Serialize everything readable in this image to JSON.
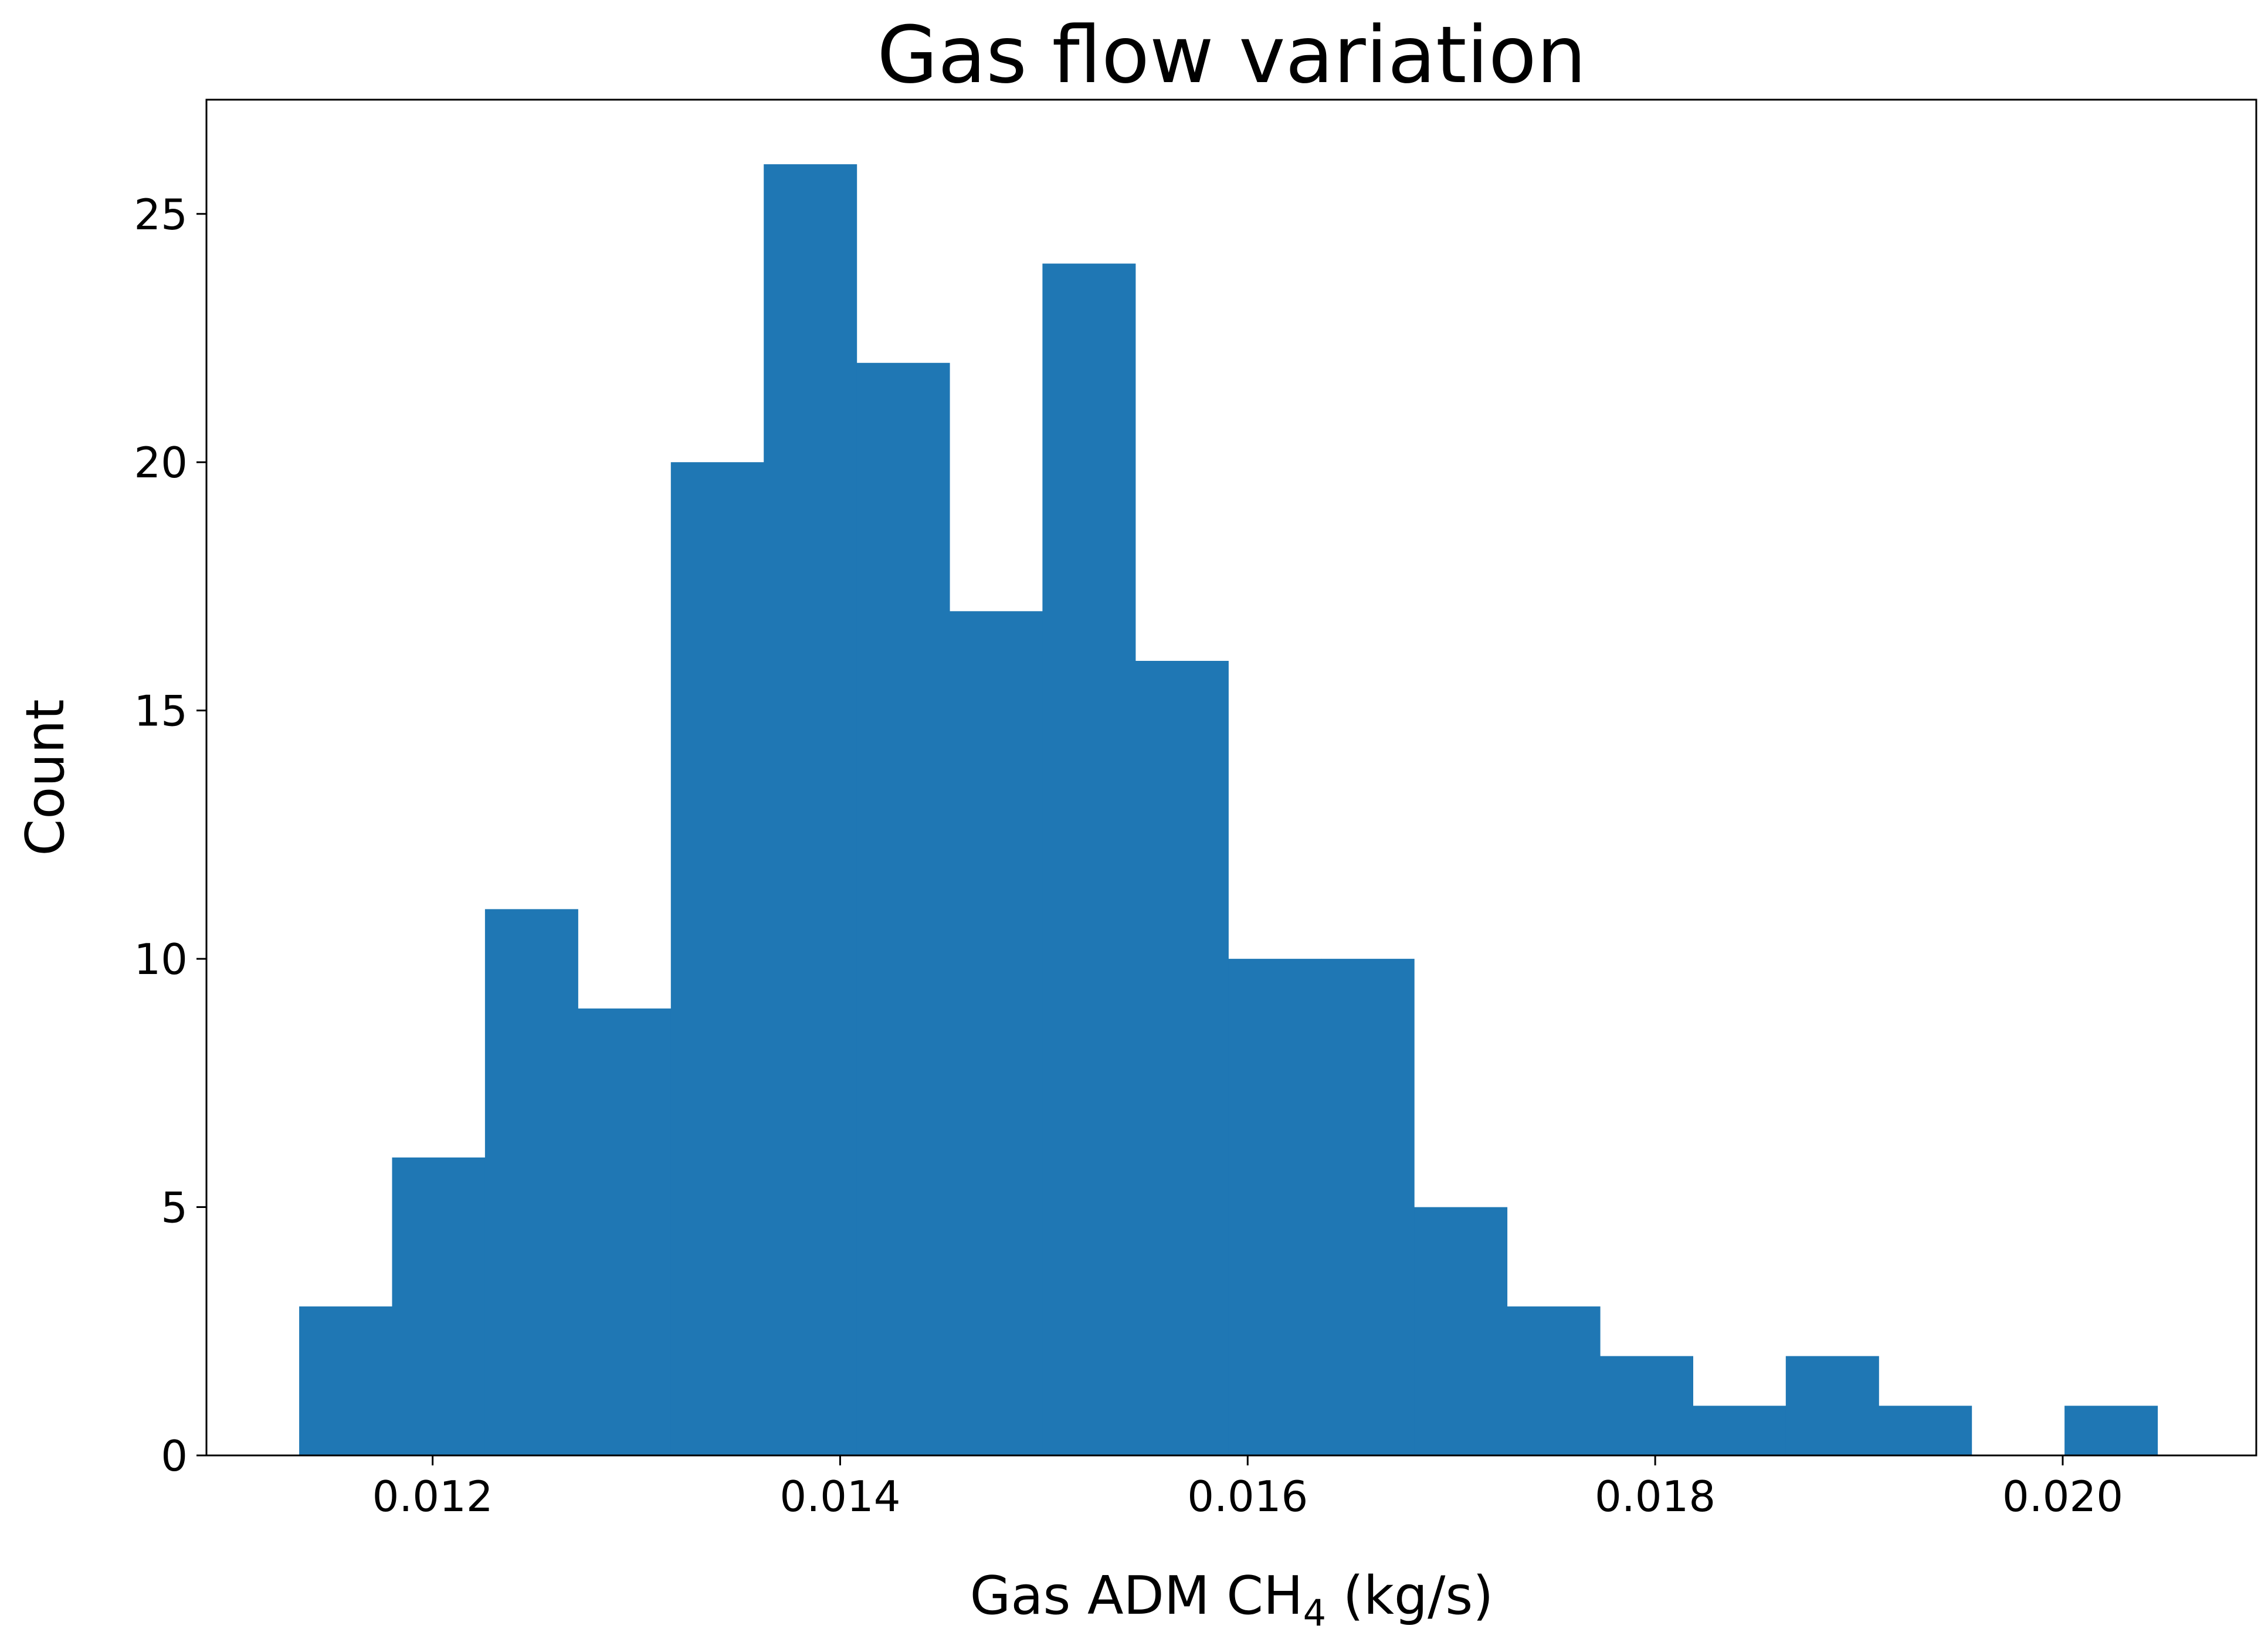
{
  "chart_data": {
    "type": "bar",
    "title": "Gas flow variation",
    "xlabel": "Gas ADM CH",
    "xlabel_sub": "4",
    "xlabel_suffix": " (kg/s)",
    "ylabel": "Count",
    "xlim": [
      0.01089,
      0.02095
    ],
    "ylim": [
      0,
      27.3
    ],
    "x_ticks": [
      {
        "value": 0.012,
        "label": "0.012"
      },
      {
        "value": 0.014,
        "label": "0.014"
      },
      {
        "value": 0.016,
        "label": "0.016"
      },
      {
        "value": 0.018,
        "label": "0.018"
      },
      {
        "value": 0.02,
        "label": "0.020"
      }
    ],
    "y_ticks": [
      {
        "value": 0,
        "label": "0"
      },
      {
        "value": 5,
        "label": "5"
      },
      {
        "value": 10,
        "label": "10"
      },
      {
        "value": 15,
        "label": "15"
      },
      {
        "value": 20,
        "label": "20"
      },
      {
        "value": 25,
        "label": "25"
      }
    ],
    "bin_start": 0.011345,
    "bin_width": 0.000456,
    "counts": [
      3,
      6,
      11,
      9,
      20,
      26,
      22,
      17,
      24,
      16,
      10,
      10,
      5,
      3,
      2,
      1,
      2,
      1,
      0,
      1
    ],
    "bar_color": "#1f77b4",
    "grid": false,
    "legend": "none"
  }
}
